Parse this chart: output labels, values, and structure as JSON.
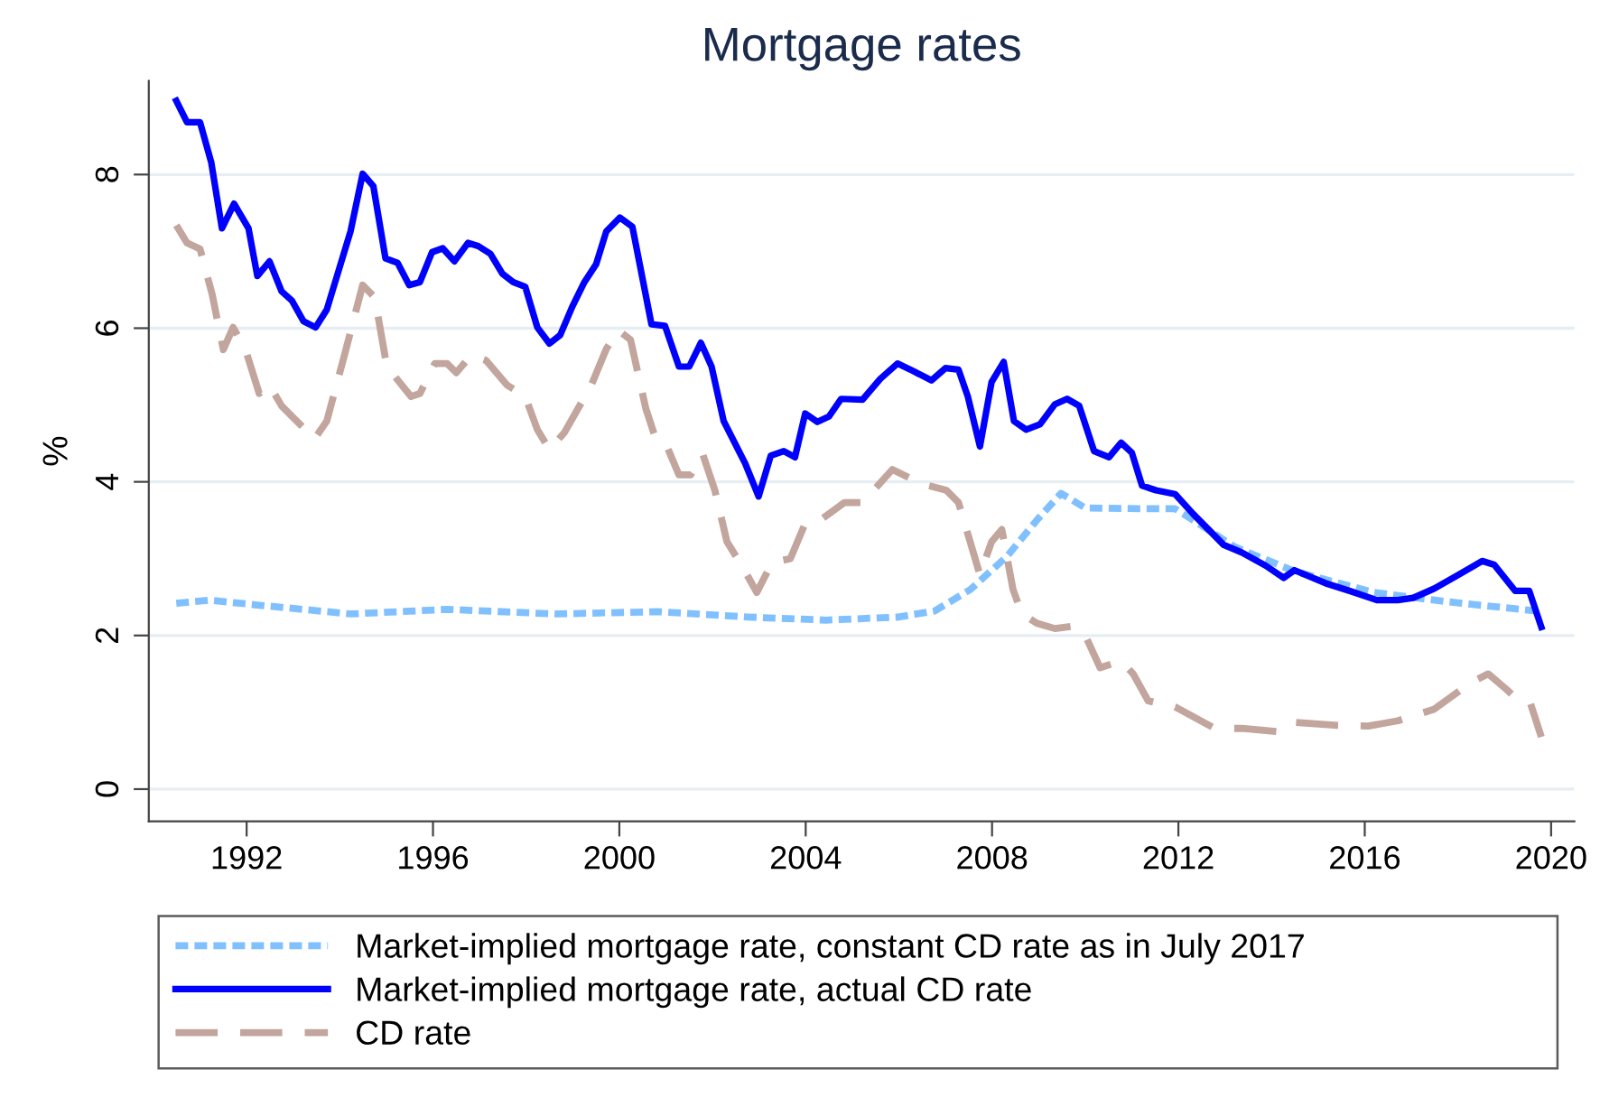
{
  "chart_data": {
    "type": "line",
    "title": "Mortgage rates",
    "ylabel": "%",
    "xlim": [
      1989.9,
      2020.5
    ],
    "xticks": [
      1992,
      1996,
      2000,
      2004,
      2008,
      2012,
      2016,
      2020
    ],
    "ylim": [
      -0.42,
      9.22
    ],
    "yticks": [
      0,
      2,
      4,
      6,
      8
    ],
    "grid": "y",
    "legend": "bottom",
    "marker": "none",
    "series": [
      {
        "name": "Market-implied mortgage rate, constant CD rate as in July 2017",
        "color": "#80c0ff",
        "line_style": "dotted",
        "x": [
          1990.49,
          1991.2,
          1992.17,
          1994.23,
          1996.3,
          1998.63,
          2000.82,
          2002.76,
          2004.44,
          2005.99,
          2006.77,
          2007.54,
          2008.32,
          2008.96,
          2009.48,
          2010.0,
          2011.16,
          2011.93,
          2013.22,
          2014.52,
          2016.2,
          2017.75,
          2019.04,
          2019.69
        ],
        "values": [
          2.42,
          2.46,
          2.4,
          2.28,
          2.34,
          2.28,
          2.31,
          2.24,
          2.2,
          2.24,
          2.32,
          2.6,
          3.03,
          3.5,
          3.85,
          3.66,
          3.65,
          3.65,
          3.15,
          2.83,
          2.56,
          2.44,
          2.36,
          2.32
        ]
      },
      {
        "name": "Market-implied mortgage rate, actual CD rate",
        "color": "#0000ff",
        "line_style": "solid",
        "x": [
          1990.49,
          1990.72,
          1991.0,
          1991.24,
          1991.47,
          1991.73,
          1992.04,
          1992.23,
          1992.49,
          1992.75,
          1992.97,
          1993.22,
          1993.48,
          1993.72,
          1994.23,
          1994.49,
          1994.72,
          1994.98,
          1995.24,
          1995.49,
          1995.72,
          1995.98,
          1996.21,
          1996.46,
          1996.75,
          1996.97,
          1997.23,
          1997.49,
          1997.72,
          1997.98,
          1998.24,
          1998.5,
          1998.73,
          1998.99,
          1999.25,
          1999.5,
          1999.72,
          2000.01,
          2000.28,
          2000.69,
          2000.98,
          2001.28,
          2001.5,
          2001.75,
          2001.98,
          2002.24,
          2002.7,
          2002.99,
          2003.25,
          2003.53,
          2003.77,
          2003.99,
          2004.25,
          2004.5,
          2004.76,
          2005.22,
          2005.6,
          2005.97,
          2006.25,
          2006.7,
          2007.0,
          2007.28,
          2007.48,
          2007.74,
          2007.99,
          2008.25,
          2008.47,
          2008.73,
          2009.03,
          2009.35,
          2009.61,
          2009.87,
          2010.19,
          2010.51,
          2010.77,
          2011.0,
          2011.22,
          2011.52,
          2011.93,
          2012.32,
          2012.97,
          2013.36,
          2013.87,
          2014.26,
          2014.49,
          2015.16,
          2015.68,
          2016.26,
          2016.71,
          2017.04,
          2017.49,
          2018.01,
          2018.52,
          2018.78,
          2019.23,
          2019.53,
          2019.79
        ],
        "values": [
          8.96,
          8.68,
          8.68,
          8.16,
          7.3,
          7.62,
          7.3,
          6.68,
          6.87,
          6.48,
          6.36,
          6.09,
          6.01,
          6.24,
          7.26,
          8.01,
          7.85,
          6.91,
          6.85,
          6.56,
          6.6,
          6.99,
          7.04,
          6.87,
          7.11,
          7.07,
          6.97,
          6.71,
          6.6,
          6.54,
          6.01,
          5.8,
          5.91,
          6.28,
          6.6,
          6.83,
          7.26,
          7.44,
          7.32,
          6.05,
          6.03,
          5.5,
          5.5,
          5.81,
          5.5,
          4.79,
          4.24,
          3.81,
          4.34,
          4.4,
          4.32,
          4.89,
          4.78,
          4.85,
          5.08,
          5.07,
          5.34,
          5.54,
          5.46,
          5.32,
          5.48,
          5.46,
          5.11,
          4.46,
          5.3,
          5.56,
          4.79,
          4.68,
          4.75,
          5.01,
          5.08,
          4.99,
          4.4,
          4.32,
          4.51,
          4.38,
          3.95,
          3.89,
          3.84,
          3.58,
          3.18,
          3.08,
          2.91,
          2.75,
          2.85,
          2.68,
          2.58,
          2.46,
          2.46,
          2.49,
          2.61,
          2.79,
          2.97,
          2.92,
          2.58,
          2.58,
          2.11
        ]
      },
      {
        "name": "CD rate",
        "color": "#c2a59d",
        "line_style": "dashed",
        "x": [
          1990.49,
          1990.72,
          1991.0,
          1991.26,
          1991.5,
          1991.71,
          1991.97,
          1992.27,
          1992.49,
          1992.75,
          1993.01,
          1993.46,
          1993.72,
          1994.1,
          1994.49,
          1994.75,
          1995.01,
          1995.53,
          1995.72,
          1996.04,
          1996.3,
          1996.5,
          1996.82,
          1997.14,
          1997.59,
          1997.98,
          1998.24,
          1998.5,
          1998.82,
          1999.4,
          1999.72,
          1999.98,
          2000.24,
          2000.57,
          2000.76,
          2000.98,
          2001.28,
          2001.53,
          2001.79,
          2002.05,
          2002.31,
          2002.63,
          2002.95,
          2003.28,
          2003.67,
          2003.99,
          2004.31,
          2004.83,
          2005.22,
          2005.86,
          2006.51,
          2007.02,
          2007.28,
          2007.74,
          2007.99,
          2008.21,
          2008.45,
          2008.64,
          2008.96,
          2009.35,
          2009.74,
          2010.0,
          2010.32,
          2010.77,
          2011.03,
          2011.35,
          2011.93,
          2012.78,
          2013.36,
          2014.13,
          2014.45,
          2015.42,
          2016.07,
          2016.71,
          2017.49,
          2018.26,
          2018.65,
          2019.04,
          2019.3,
          2019.56,
          2019.79
        ],
        "values": [
          7.34,
          7.11,
          7.03,
          6.44,
          5.72,
          6.01,
          5.73,
          5.15,
          5.26,
          4.99,
          4.83,
          4.56,
          4.79,
          5.65,
          6.56,
          6.4,
          5.5,
          5.11,
          5.15,
          5.54,
          5.54,
          5.42,
          5.65,
          5.58,
          5.26,
          5.11,
          4.68,
          4.42,
          4.64,
          5.26,
          5.73,
          5.97,
          5.85,
          4.95,
          4.6,
          4.52,
          4.09,
          4.09,
          4.36,
          3.89,
          3.22,
          2.91,
          2.56,
          2.95,
          3.0,
          3.46,
          3.5,
          3.73,
          3.73,
          4.16,
          3.97,
          3.89,
          3.73,
          2.79,
          3.22,
          3.38,
          2.6,
          2.28,
          2.16,
          2.09,
          2.12,
          2.0,
          1.58,
          1.67,
          1.5,
          1.15,
          1.07,
          0.79,
          0.79,
          0.75,
          0.87,
          0.83,
          0.82,
          0.89,
          1.04,
          1.38,
          1.5,
          1.3,
          1.15,
          1.11,
          0.68
        ]
      }
    ]
  }
}
